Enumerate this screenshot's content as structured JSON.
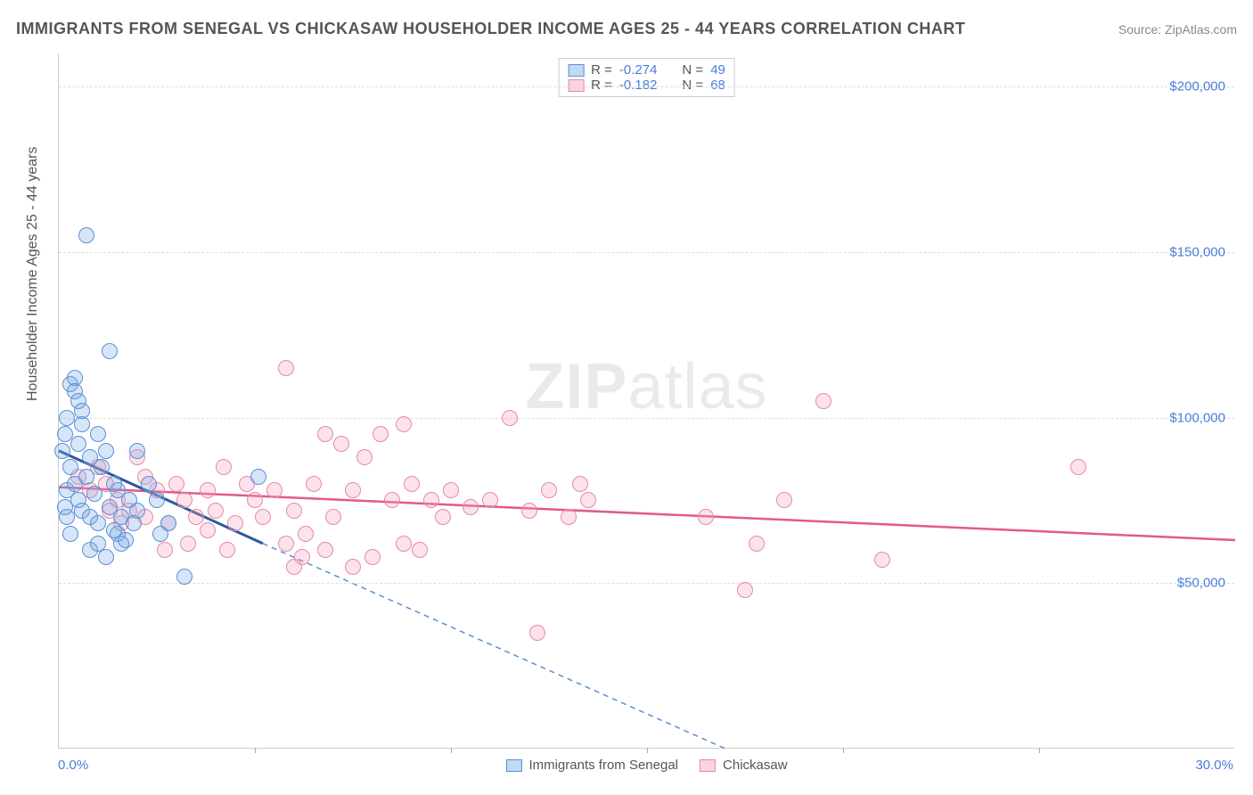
{
  "title": "IMMIGRANTS FROM SENEGAL VS CHICKASAW HOUSEHOLDER INCOME AGES 25 - 44 YEARS CORRELATION CHART",
  "source": "Source: ZipAtlas.com",
  "watermark_bold": "ZIP",
  "watermark_rest": "atlas",
  "y_axis_title": "Householder Income Ages 25 - 44 years",
  "chart": {
    "type": "scatter",
    "background_color": "#ffffff",
    "grid_color": "#dddddd",
    "axis_color": "#cccccc",
    "label_color": "#4a7dd8",
    "title_color": "#555555",
    "xlim": [
      0,
      30
    ],
    "ylim": [
      0,
      210000
    ],
    "x_tick_step": 5,
    "y_ticks": [
      50000,
      100000,
      150000,
      200000
    ],
    "y_tick_labels": [
      "$50,000",
      "$100,000",
      "$150,000",
      "$200,000"
    ],
    "x_min_label": "0.0%",
    "x_max_label": "30.0%",
    "marker_radius": 9,
    "title_fontsize": 18,
    "label_fontsize": 15
  },
  "legend_top": {
    "r_label": "R =",
    "n_label": "N =",
    "series": [
      {
        "swatch": "a",
        "r": "-0.274",
        "n": "49"
      },
      {
        "swatch": "b",
        "r": "-0.182",
        "n": "68"
      }
    ]
  },
  "legend_bottom": {
    "series": [
      {
        "swatch": "a",
        "label": "Immigrants from Senegal"
      },
      {
        "swatch": "b",
        "label": "Chickasaw"
      }
    ]
  },
  "series_a": {
    "name": "Immigrants from Senegal",
    "color_fill": "rgba(120,170,230,0.30)",
    "color_stroke": "#5b8fd6",
    "trend": {
      "solid": {
        "x1": 0,
        "y1": 90000,
        "x2": 5.2,
        "y2": 62000,
        "color": "#2c5aa0",
        "width": 3
      },
      "dashed": {
        "x1": 5.2,
        "y1": 62000,
        "x2": 17,
        "y2": 0,
        "color": "#5b8fd6",
        "width": 1.5,
        "dash": "6 5"
      }
    },
    "points": [
      [
        0.1,
        90000
      ],
      [
        0.15,
        95000
      ],
      [
        0.2,
        100000
      ],
      [
        0.2,
        78000
      ],
      [
        0.3,
        110000
      ],
      [
        0.4,
        112000
      ],
      [
        0.3,
        85000
      ],
      [
        0.4,
        80000
      ],
      [
        0.5,
        92000
      ],
      [
        0.5,
        75000
      ],
      [
        0.6,
        98000
      ],
      [
        0.7,
        155000
      ],
      [
        0.6,
        72000
      ],
      [
        0.7,
        82000
      ],
      [
        0.8,
        88000
      ],
      [
        0.8,
        70000
      ],
      [
        0.9,
        77000
      ],
      [
        1.0,
        95000
      ],
      [
        1.0,
        68000
      ],
      [
        1.1,
        85000
      ],
      [
        1.2,
        90000
      ],
      [
        1.3,
        73000
      ],
      [
        1.4,
        80000
      ],
      [
        1.5,
        65000
      ],
      [
        1.5,
        78000
      ],
      [
        1.6,
        70000
      ],
      [
        1.7,
        63000
      ],
      [
        1.8,
        75000
      ],
      [
        1.9,
        68000
      ],
      [
        2.0,
        90000
      ],
      [
        2.0,
        72000
      ],
      [
        1.3,
        120000
      ],
      [
        0.4,
        108000
      ],
      [
        0.5,
        105000
      ],
      [
        0.6,
        102000
      ],
      [
        0.8,
        60000
      ],
      [
        1.0,
        62000
      ],
      [
        1.2,
        58000
      ],
      [
        1.4,
        66000
      ],
      [
        1.6,
        62000
      ],
      [
        0.3,
        65000
      ],
      [
        0.2,
        70000
      ],
      [
        0.15,
        73000
      ],
      [
        2.5,
        75000
      ],
      [
        2.8,
        68000
      ],
      [
        2.3,
        80000
      ],
      [
        3.2,
        52000
      ],
      [
        5.1,
        82000
      ],
      [
        2.6,
        65000
      ]
    ]
  },
  "series_b": {
    "name": "Chickasaw",
    "color_fill": "rgba(245,160,185,0.30)",
    "color_stroke": "#e48aa8",
    "trend": {
      "solid": {
        "x1": 0,
        "y1": 79000,
        "x2": 30,
        "y2": 63000,
        "color": "#e15a8a",
        "width": 2.5
      }
    },
    "points": [
      [
        0.5,
        82000
      ],
      [
        0.8,
        78000
      ],
      [
        1.0,
        85000
      ],
      [
        1.2,
        80000
      ],
      [
        1.5,
        75000
      ],
      [
        1.8,
        72000
      ],
      [
        2.0,
        88000
      ],
      [
        2.2,
        70000
      ],
      [
        2.5,
        78000
      ],
      [
        2.2,
        82000
      ],
      [
        2.8,
        68000
      ],
      [
        3.0,
        80000
      ],
      [
        3.2,
        75000
      ],
      [
        3.5,
        70000
      ],
      [
        3.8,
        78000
      ],
      [
        4.0,
        72000
      ],
      [
        4.2,
        85000
      ],
      [
        4.5,
        68000
      ],
      [
        4.8,
        80000
      ],
      [
        5.0,
        75000
      ],
      [
        5.2,
        70000
      ],
      [
        5.5,
        78000
      ],
      [
        5.8,
        115000
      ],
      [
        6.0,
        72000
      ],
      [
        6.2,
        58000
      ],
      [
        6.5,
        80000
      ],
      [
        6.8,
        95000
      ],
      [
        7.0,
        70000
      ],
      [
        6.3,
        65000
      ],
      [
        7.5,
        78000
      ],
      [
        7.8,
        88000
      ],
      [
        8.0,
        58000
      ],
      [
        8.2,
        95000
      ],
      [
        8.5,
        75000
      ],
      [
        8.8,
        62000
      ],
      [
        9.0,
        80000
      ],
      [
        6.8,
        60000
      ],
      [
        9.5,
        75000
      ],
      [
        9.8,
        70000
      ],
      [
        10.0,
        78000
      ],
      [
        10.5,
        73000
      ],
      [
        11.0,
        75000
      ],
      [
        11.5,
        100000
      ],
      [
        12.0,
        72000
      ],
      [
        12.5,
        78000
      ],
      [
        13.0,
        70000
      ],
      [
        13.5,
        75000
      ],
      [
        12.2,
        35000
      ],
      [
        13.3,
        80000
      ],
      [
        16.5,
        70000
      ],
      [
        18.5,
        75000
      ],
      [
        19.5,
        105000
      ],
      [
        17.5,
        48000
      ],
      [
        17.8,
        62000
      ],
      [
        21.0,
        57000
      ],
      [
        26.0,
        85000
      ],
      [
        7.2,
        92000
      ],
      [
        8.8,
        98000
      ],
      [
        4.3,
        60000
      ],
      [
        5.8,
        62000
      ],
      [
        3.3,
        62000
      ],
      [
        2.7,
        60000
      ],
      [
        1.6,
        68000
      ],
      [
        1.3,
        72000
      ],
      [
        6.0,
        55000
      ],
      [
        9.2,
        60000
      ],
      [
        7.5,
        55000
      ],
      [
        3.8,
        66000
      ]
    ]
  }
}
